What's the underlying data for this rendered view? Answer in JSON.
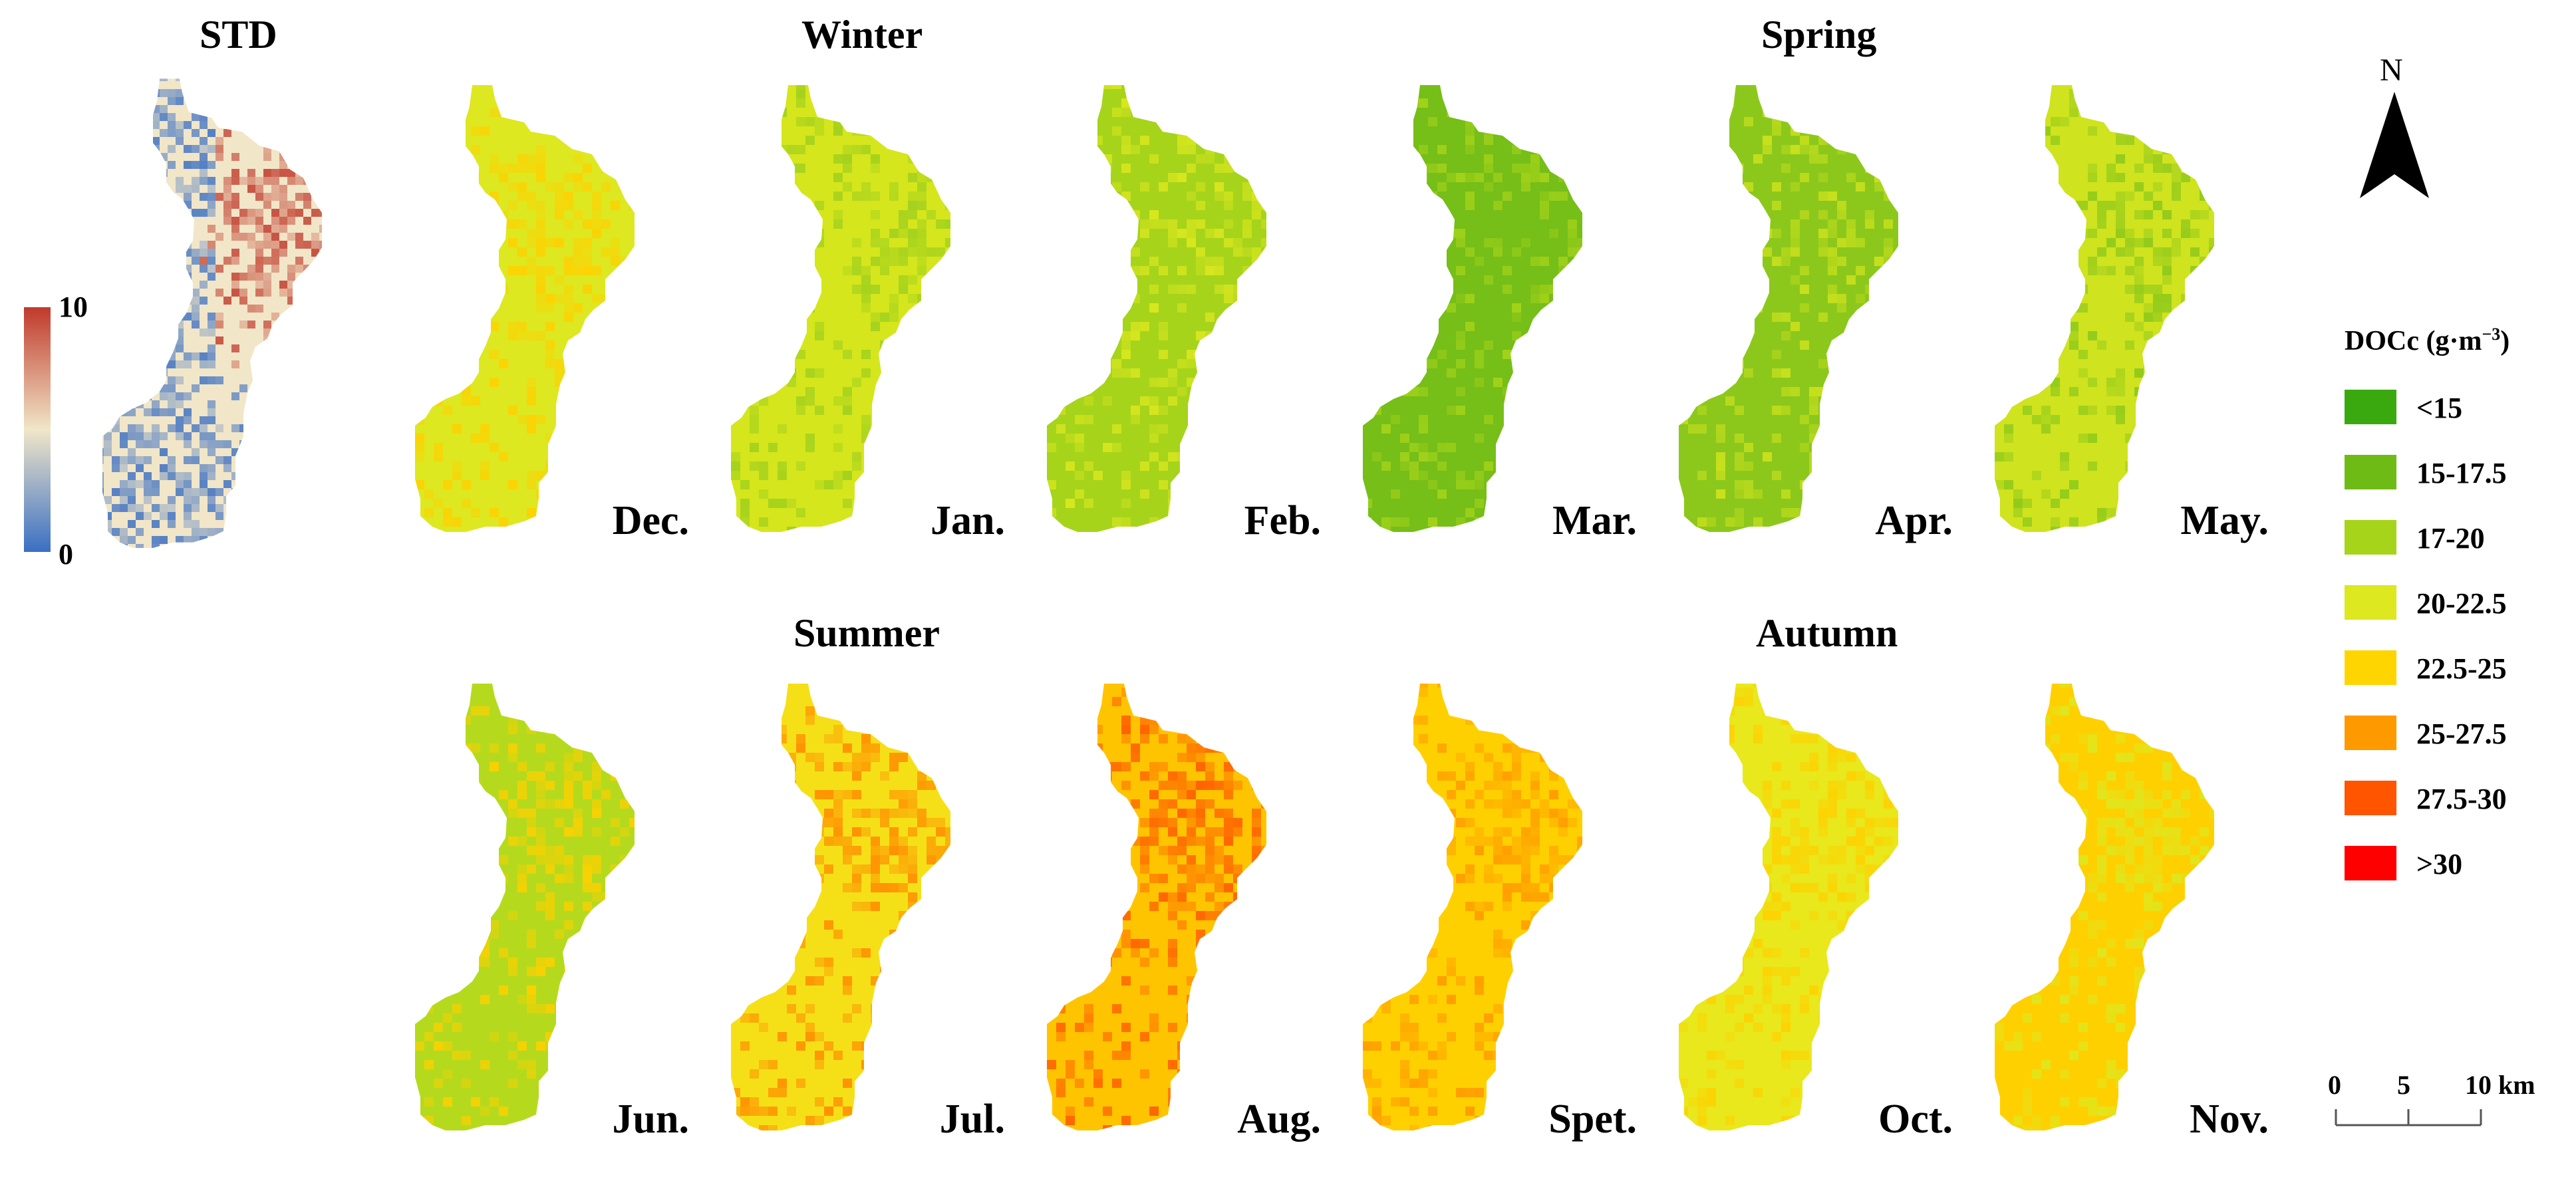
{
  "std_panel": {
    "title": "STD",
    "colorbar": {
      "max_label": "10",
      "min_label": "0",
      "colors": [
        "#c0392b",
        "#f1e6c8",
        "#3a6fc4"
      ]
    }
  },
  "seasons": {
    "winter": "Winter",
    "spring": "Spring",
    "summer": "Summer",
    "autumn": "Autumn"
  },
  "months": [
    {
      "label": "Dec.",
      "base": "#dde820",
      "accent": "#ffd000",
      "level": 0.55
    },
    {
      "label": "Jan.",
      "base": "#d5e61c",
      "accent": "#9ecf1e",
      "level": 0.45
    },
    {
      "label": "Feb.",
      "base": "#a6d41a",
      "accent": "#dde820",
      "level": 0.3
    },
    {
      "label": "Mar.",
      "base": "#76be18",
      "accent": "#a6d41a",
      "level": 0.15
    },
    {
      "label": "Apr.",
      "base": "#8cc81b",
      "accent": "#cfe31e",
      "level": 0.25
    },
    {
      "label": "May.",
      "base": "#cfe31e",
      "accent": "#8cc81b",
      "level": 0.45
    },
    {
      "label": "Jun.",
      "base": "#b5da1d",
      "accent": "#ffd000",
      "level": 0.5
    },
    {
      "label": "Jul.",
      "base": "#f5e017",
      "accent": "#ff8a00",
      "level": 0.65
    },
    {
      "label": "Aug.",
      "base": "#ffc400",
      "accent": "#ff5a00",
      "level": 0.8
    },
    {
      "label": "Spet.",
      "base": "#ffd000",
      "accent": "#ff9900",
      "level": 0.75
    },
    {
      "label": "Oct.",
      "base": "#e8e81c",
      "accent": "#ffd000",
      "level": 0.55
    },
    {
      "label": "Nov.",
      "base": "#ffd000",
      "accent": "#dde820",
      "level": 0.62
    }
  ],
  "legend": {
    "title": "DOCc (g·m",
    "title_sup": "−3",
    "title_close": ")",
    "classes": [
      {
        "label": "<15",
        "color": "#3aa90f"
      },
      {
        "label": "15-17.5",
        "color": "#6fbb16"
      },
      {
        "label": "17-20",
        "color": "#a6d41a"
      },
      {
        "label": "20-22.5",
        "color": "#dde820"
      },
      {
        "label": "22.5-25",
        "color": "#ffd500"
      },
      {
        "label": "25-27.5",
        "color": "#ff9900"
      },
      {
        "label": "27.5-30",
        "color": "#ff5500"
      },
      {
        "label": ">30",
        "color": "#ff0000"
      }
    ]
  },
  "north_arrow": {
    "label": "N"
  },
  "scale_bar": {
    "labels": [
      "0",
      "5",
      "10 km"
    ]
  }
}
